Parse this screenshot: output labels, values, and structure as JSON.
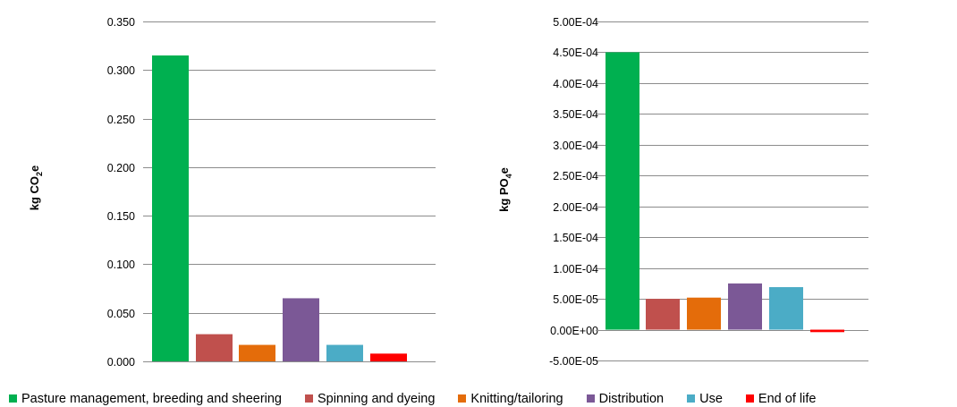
{
  "chart_data": [
    {
      "type": "bar",
      "title": "",
      "xlabel": "",
      "ylabel_main": "kg CO",
      "ylabel_sub": "2",
      "ylabel_tail": "e",
      "ylim": [
        0,
        0.35
      ],
      "yticks": [
        "0.000",
        "0.050",
        "0.100",
        "0.150",
        "0.200",
        "0.250",
        "0.300",
        "0.350"
      ],
      "ytick_values": [
        0,
        0.05,
        0.1,
        0.15,
        0.2,
        0.25,
        0.3,
        0.35
      ],
      "categories": [
        "Pasture management, breeding and sheering",
        "Spinning and dyeing",
        "Knitting/tailoring",
        "Distribution",
        "Use",
        "End of life"
      ],
      "values": [
        0.315,
        0.028,
        0.017,
        0.065,
        0.017,
        0.008
      ],
      "grid": true
    },
    {
      "type": "bar",
      "title": "",
      "xlabel": "",
      "ylabel_main": "kg PO",
      "ylabel_sub": "4",
      "ylabel_tail": "e",
      "ylim": [
        -5e-05,
        0.0005
      ],
      "yticks": [
        "-5.00E-05",
        "0.00E+00",
        "5.00E-05",
        "1.00E-04",
        "1.50E-04",
        "2.00E-04",
        "2.50E-04",
        "3.00E-04",
        "3.50E-04",
        "4.00E-04",
        "4.50E-04",
        "5.00E-04"
      ],
      "ytick_values": [
        -5e-05,
        0,
        5e-05,
        0.0001,
        0.00015,
        0.0002,
        0.00025,
        0.0003,
        0.00035,
        0.0004,
        0.00045,
        0.0005
      ],
      "categories": [
        "Pasture management, breeding and sheering",
        "Spinning and dyeing",
        "Knitting/tailoring",
        "Distribution",
        "Use",
        "End of life"
      ],
      "values": [
        0.00045,
        5e-05,
        5.2e-05,
        7.5e-05,
        6.9e-05,
        -4e-06
      ],
      "grid": true
    }
  ],
  "legend": {
    "placement": "bottom",
    "items": [
      {
        "label": "Pasture management, breeding and sheering",
        "color": "#00b050"
      },
      {
        "label": "Spinning and dyeing",
        "color": "#c0504d"
      },
      {
        "label": "Knitting/tailoring",
        "color": "#e46c0a"
      },
      {
        "label": "Distribution",
        "color": "#7b5896"
      },
      {
        "label": "Use",
        "color": "#4bacc6"
      },
      {
        "label": "End of life",
        "color": "#ff0000"
      }
    ]
  }
}
